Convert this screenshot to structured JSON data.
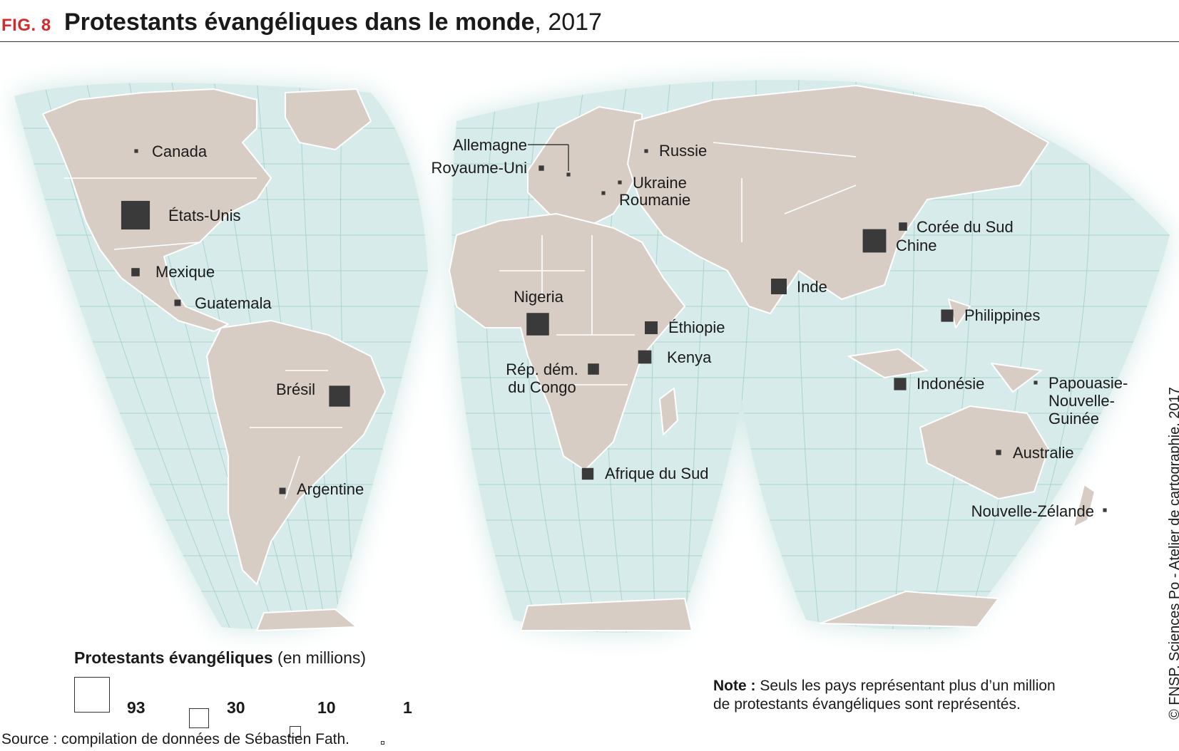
{
  "header": {
    "fig_label": "FIG. 8",
    "title": "Protestants évangéliques dans le monde",
    "year": ", 2017"
  },
  "colors": {
    "ocean": "#d7ecea",
    "land": "#d7cdc5",
    "marker": "#3a3a3a",
    "accent": "#d32b2b"
  },
  "countries": [
    {
      "name": "Canada",
      "value": 1
    },
    {
      "name": "États-Unis",
      "value": 60
    },
    {
      "name": "Mexique",
      "value": 5
    },
    {
      "name": "Guatemala",
      "value": 3
    },
    {
      "name": "Brésil",
      "value": 32
    },
    {
      "name": "Argentine",
      "value": 3
    },
    {
      "name": "Allemagne",
      "value": 1
    },
    {
      "name": "Royaume-Uni",
      "value": 2
    },
    {
      "name": "Russie",
      "value": 1
    },
    {
      "name": "Ukraine",
      "value": 1
    },
    {
      "name": "Roumanie",
      "value": 1
    },
    {
      "name": "Nigeria",
      "value": 37
    },
    {
      "name": "Rép. dém.\ndu Congo",
      "value": 9
    },
    {
      "name": "Éthiopie",
      "value": 12
    },
    {
      "name": "Kenya",
      "value": 13
    },
    {
      "name": "Afrique du Sud",
      "value": 10
    },
    {
      "name": "Corée du Sud",
      "value": 5
    },
    {
      "name": "Chine",
      "value": 40
    },
    {
      "name": "Inde",
      "value": 18
    },
    {
      "name": "Philippines",
      "value": 11
    },
    {
      "name": "Indonésie",
      "value": 11
    },
    {
      "name": "Papouasie-\nNouvelle-\nGuinée",
      "value": 1
    },
    {
      "name": "Australie",
      "value": 2
    },
    {
      "name": "Nouvelle-Zélande",
      "value": 1
    }
  ],
  "legend": {
    "title_bold": "Protestants évangéliques",
    "title_unit": " (en millions)",
    "items": [
      {
        "value": 93,
        "label": "93"
      },
      {
        "value": 30,
        "label": "30"
      },
      {
        "value": 10,
        "label": "10"
      },
      {
        "value": 1,
        "label": "1"
      }
    ]
  },
  "note": {
    "label": "Note :",
    "line1": " Seuls les pays représentant plus d’un million",
    "line2": "de protestants évangéliques sont représentés."
  },
  "source": "Source : compilation de données de Sébastien Fath.",
  "credit": "© FNSP. Sciences Po - Atelier de cartographie, 2017"
}
